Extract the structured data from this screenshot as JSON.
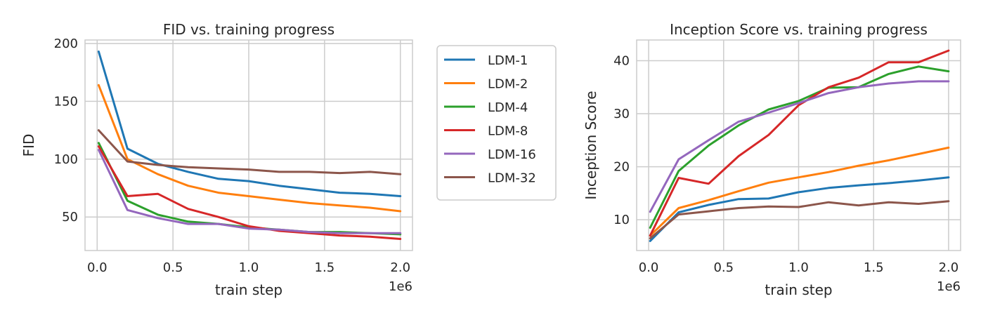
{
  "chart_data": [
    {
      "type": "line",
      "title": "FID vs. training progress",
      "xlabel": "train step",
      "ylabel": "FID",
      "x_offset_text": "1e6",
      "x": [
        0.01,
        0.2,
        0.4,
        0.6,
        0.8,
        1.0,
        1.2,
        1.4,
        1.6,
        1.8,
        2.0
      ],
      "xlim": [
        -0.08,
        2.08
      ],
      "ylim": [
        21,
        203
      ],
      "xticks": [
        0.0,
        0.5,
        1.0,
        1.5,
        2.0
      ],
      "xtick_labels": [
        "0.0",
        "0.5",
        "1.0",
        "1.5",
        "2.0"
      ],
      "yticks": [
        50,
        100,
        150,
        200
      ],
      "ytick_labels": [
        "50",
        "100",
        "150",
        "200"
      ],
      "grid": true,
      "legend": "outside-right",
      "series": [
        {
          "name": "LDM-1",
          "color": "#1f77b4",
          "values": [
            193,
            109,
            96,
            89,
            83,
            81,
            77,
            74,
            71,
            70,
            68
          ]
        },
        {
          "name": "LDM-2",
          "color": "#ff7f0e",
          "values": [
            164,
            100,
            87,
            77,
            71,
            68,
            65,
            62,
            60,
            58,
            55
          ]
        },
        {
          "name": "LDM-4",
          "color": "#2ca02c",
          "values": [
            114,
            64,
            52,
            46,
            44,
            41,
            39,
            37,
            37,
            36,
            35
          ]
        },
        {
          "name": "LDM-8",
          "color": "#d62728",
          "values": [
            111,
            68,
            70,
            57,
            50,
            42,
            38,
            36,
            34,
            33,
            31
          ]
        },
        {
          "name": "LDM-16",
          "color": "#9467bd",
          "values": [
            108,
            56,
            49,
            44,
            44,
            40,
            39,
            37,
            36,
            36,
            36
          ]
        },
        {
          "name": "LDM-32",
          "color": "#8c564b",
          "values": [
            125,
            98,
            95,
            93,
            92,
            91,
            89,
            89,
            88,
            89,
            87
          ]
        }
      ]
    },
    {
      "type": "line",
      "title": "Inception Score vs. training progress",
      "xlabel": "train step",
      "ylabel": "Inception Score",
      "x_offset_text": "1e6",
      "x": [
        0.01,
        0.2,
        0.4,
        0.6,
        0.8,
        1.0,
        1.2,
        1.4,
        1.6,
        1.8,
        2.0
      ],
      "xlim": [
        -0.08,
        2.08
      ],
      "ylim": [
        4.2,
        43.9
      ],
      "xticks": [
        0.0,
        0.5,
        1.0,
        1.5,
        2.0
      ],
      "xtick_labels": [
        "0.0",
        "0.5",
        "1.0",
        "1.5",
        "2.0"
      ],
      "yticks": [
        10,
        20,
        30,
        40
      ],
      "ytick_labels": [
        "10",
        "20",
        "30",
        "40"
      ],
      "grid": true,
      "legend": "none",
      "series": [
        {
          "color": "#1f77b4",
          "values": [
            6.0,
            11.4,
            12.8,
            13.9,
            14.0,
            15.2,
            16.0,
            16.5,
            16.9,
            17.4,
            18.0
          ]
        },
        {
          "color": "#ff7f0e",
          "values": [
            7.0,
            12.2,
            13.7,
            15.4,
            17.0,
            18.0,
            19.0,
            20.2,
            21.2,
            22.4,
            23.6
          ]
        },
        {
          "color": "#2ca02c",
          "values": [
            8.5,
            19.2,
            24.0,
            27.8,
            30.8,
            32.4,
            34.9,
            35.0,
            37.5,
            38.9,
            38.0
          ]
        },
        {
          "color": "#d62728",
          "values": [
            7.0,
            17.9,
            16.8,
            22.0,
            26.0,
            31.6,
            35.0,
            36.8,
            39.7,
            39.7,
            41.9
          ]
        },
        {
          "color": "#9467bd",
          "values": [
            11.5,
            21.4,
            25.0,
            28.5,
            30.2,
            32.0,
            33.9,
            35.0,
            35.7,
            36.1,
            36.1
          ]
        },
        {
          "color": "#8c564b",
          "values": [
            6.5,
            11.0,
            11.6,
            12.2,
            12.5,
            12.4,
            13.3,
            12.7,
            13.3,
            13.0,
            13.5
          ]
        }
      ]
    }
  ]
}
